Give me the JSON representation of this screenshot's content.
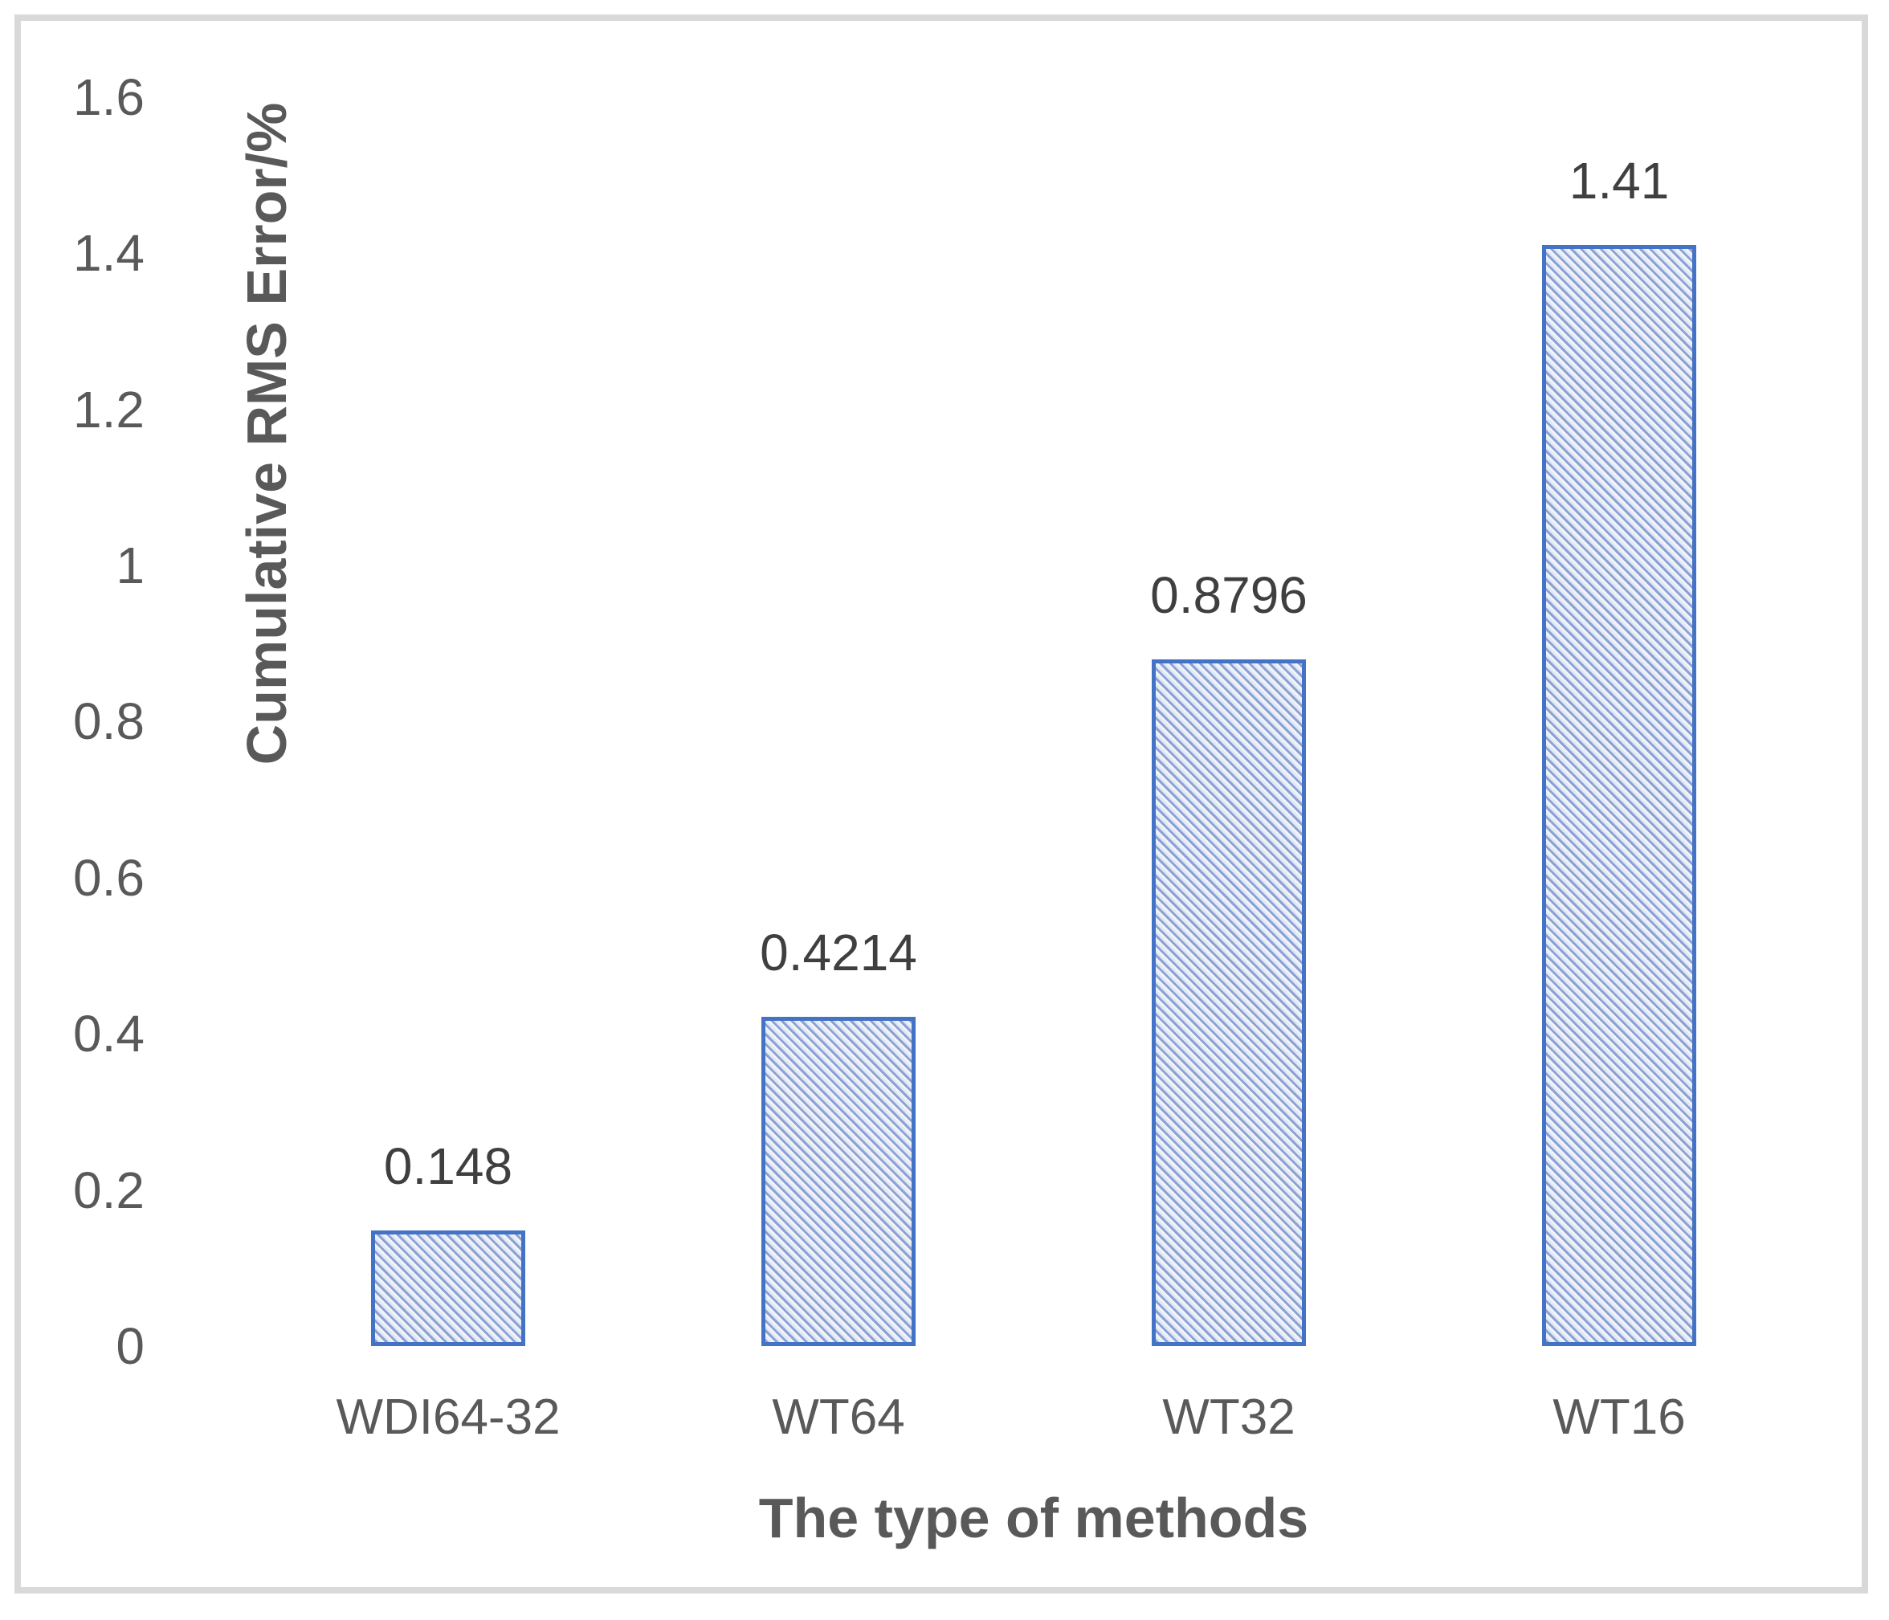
{
  "chart_data": {
    "type": "bar",
    "categories": [
      "WDI64-32",
      "WT64",
      "WT32",
      "WT16"
    ],
    "values": [
      0.148,
      0.4214,
      0.8796,
      1.41
    ],
    "data_labels": [
      "0.148",
      "0.4214",
      "0.8796",
      "1.41"
    ],
    "title": "",
    "xlabel": "The type of methods",
    "ylabel": "Cumulative RMS Error/%",
    "ylim": [
      0,
      1.6
    ],
    "ytick_interval": 0.2,
    "ytick_labels": [
      "0",
      "0.2",
      "0.4",
      "0.6",
      "0.8",
      "1",
      "1.2",
      "1.4",
      "1.6"
    ],
    "grid": "off",
    "legend_position": "none",
    "bar_fill_style": "diagonal-hatch",
    "colors": {
      "bar_border": "#4472C4",
      "bar_hatch_line": "#8AA3D6",
      "bar_background": "#EAEFF9",
      "data_label_text": "#3F3F3F",
      "axis_text": "#595959",
      "frame_border": "#D9D9D9"
    }
  }
}
